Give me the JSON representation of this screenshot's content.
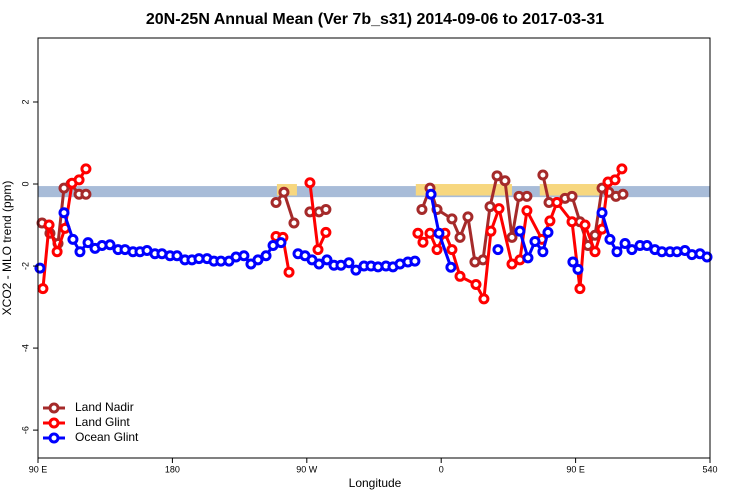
{
  "chart_data": {
    "type": "line",
    "title": "20N-25N Annual Mean (Ver 7b_s31)   2014-09-06 to 2017-03-31",
    "xlabel": "Longitude",
    "ylabel": "XCO2 - MLO trend (ppm)",
    "xlim": [
      90,
      540
    ],
    "ylim": [
      -6.68,
      3.56
    ],
    "xticks": [
      {
        "value": 90,
        "label": "90 E"
      },
      180,
      {
        "value": 270,
        "label": "90 W"
      },
      {
        "value": 360,
        "label": "0"
      },
      {
        "value": 450,
        "label": "90 E"
      },
      540
    ],
    "yticks": [
      -6,
      -4,
      -2,
      0,
      2
    ],
    "legend": "bottom-left",
    "bands": [
      {
        "color": "#a8bcd8",
        "xlim": [
          90,
          540
        ],
        "ylim": [
          -0.32,
          -0.05
        ]
      },
      {
        "color": "#f7d77f",
        "xlim": [
          250,
          263.4
        ],
        "ylim": [
          -0.28,
          0.0
        ]
      },
      {
        "color": "#f7d77f",
        "xlim": [
          343,
          407.4
        ],
        "ylim": [
          -0.28,
          0.0
        ]
      },
      {
        "color": "#f7d77f",
        "xlim": [
          426,
          466
        ],
        "ylim": [
          -0.28,
          0.0
        ]
      }
    ],
    "series": [
      {
        "name": "Land Nadir",
        "color": "#a52a2a",
        "x": [
          92.7,
          98,
          103.4,
          107.4,
          112.1,
          117.5,
          122.1,
          null,
          249.4,
          254.7,
          261.4,
          null,
          272.1,
          278.2,
          282.8,
          null,
          347.1,
          352.5,
          357.2,
          367.2,
          372.6,
          377.9,
          382.6,
          388,
          392.7,
          397.4,
          402.7,
          407.4,
          412.1,
          417.4,
          null,
          428.1,
          432.2,
          437.5,
          442.9,
          447.6,
          452.9,
          458.3,
          463,
          467.7,
          472.3,
          477,
          481.7
        ],
        "values": [
          -0.95,
          -1.2,
          -1.45,
          -0.1,
          0.0,
          -0.25,
          -0.25,
          null,
          -0.45,
          -0.2,
          -0.95,
          null,
          -0.68,
          -0.68,
          -0.62,
          null,
          -0.62,
          -0.1,
          -0.62,
          -0.85,
          -1.3,
          -0.8,
          -1.9,
          -1.85,
          -0.55,
          0.2,
          0.08,
          -1.3,
          -0.3,
          -0.3,
          null,
          0.22,
          -0.45,
          -0.45,
          -0.35,
          -0.3,
          -0.92,
          -1.5,
          -1.25,
          -0.1,
          -0.2,
          -0.3,
          -0.25
        ]
      },
      {
        "name": "Land Glint",
        "color": "#ff0000",
        "x": [
          93.3,
          97.4,
          102.8,
          108.1,
          112.8,
          117.5,
          122.1,
          null,
          249.4,
          254,
          258.1,
          null,
          272.1,
          277.5,
          282.8,
          null,
          344.4,
          347.8,
          352.5,
          357.2,
          362.5,
          367.2,
          372.6,
          383.3,
          388.6,
          393.3,
          398.7,
          407.4,
          412.7,
          417.4,
          427.5,
          432.8,
          437.5,
          447.6,
          452.9,
          456.3,
          463,
          467.7,
          471.7,
          476.4,
          481
        ],
        "values": [
          -2.55,
          -1.0,
          -1.65,
          -1.08,
          0.02,
          0.1,
          0.37,
          null,
          -1.28,
          -1.3,
          -2.15,
          null,
          0.03,
          -1.6,
          -1.18,
          null,
          -1.2,
          -1.42,
          -1.2,
          -1.6,
          -1.2,
          -1.6,
          -2.25,
          -2.45,
          -2.8,
          -1.15,
          -0.6,
          -1.95,
          -1.85,
          -0.65,
          -1.35,
          -0.9,
          -0.45,
          -0.92,
          -2.55,
          -1.0,
          -1.65,
          -1.1,
          0.05,
          0.1,
          0.37
        ]
      },
      {
        "name": "Ocean Glint",
        "color": "#0000ff",
        "x": [
          91.3,
          null,
          107.4,
          113.4,
          118.1,
          123.5,
          128.2,
          132.9,
          138.2,
          143.6,
          148.3,
          153.6,
          158.3,
          163,
          168.3,
          173,
          178.4,
          183.1,
          188.4,
          193.1,
          197.8,
          203.2,
          207.8,
          212.5,
          217.9,
          222.6,
          227.9,
          232.6,
          237.3,
          242.7,
          247.4,
          252.7,
          null,
          264.1,
          268.8,
          273.5,
          278.2,
          283.5,
          288.2,
          292.9,
          298.2,
          302.9,
          308.3,
          313,
          317.7,
          323,
          327.7,
          332.4,
          337.7,
          342.4,
          null,
          353.2,
          358.5,
          366.5,
          null,
          398,
          null,
          412.7,
          418.1,
          422.8,
          428.1,
          431.5,
          null,
          448.2,
          451.6,
          null,
          467.7,
          473,
          477.7,
          483.1,
          487.7,
          493.1,
          497.8,
          503.1,
          507.8,
          513.2,
          517.9,
          523.2,
          527.9,
          533.3,
          538
        ],
        "values": [
          -2.05,
          null,
          -0.7,
          -1.35,
          -1.65,
          -1.43,
          -1.57,
          -1.5,
          -1.48,
          -1.6,
          -1.6,
          -1.65,
          -1.65,
          -1.62,
          -1.7,
          -1.7,
          -1.75,
          -1.75,
          -1.85,
          -1.85,
          -1.82,
          -1.82,
          -1.88,
          -1.88,
          -1.88,
          -1.78,
          -1.75,
          -1.95,
          -1.85,
          -1.75,
          -1.5,
          -1.43,
          null,
          -1.7,
          -1.75,
          -1.85,
          -1.95,
          -1.85,
          -1.98,
          -1.98,
          -1.92,
          -2.1,
          -2.0,
          -2.0,
          -2.02,
          -2.0,
          -2.02,
          -1.95,
          -1.9,
          -1.88,
          null,
          -0.25,
          -1.2,
          -2.03,
          null,
          -1.6,
          null,
          -1.15,
          -1.8,
          -1.4,
          -1.65,
          -1.18,
          null,
          -1.9,
          -2.08,
          null,
          -0.7,
          -1.35,
          -1.65,
          -1.45,
          -1.6,
          -1.5,
          -1.5,
          -1.6,
          -1.65,
          -1.65,
          -1.65,
          -1.62,
          -1.72,
          -1.7,
          -1.78
        ]
      }
    ]
  }
}
